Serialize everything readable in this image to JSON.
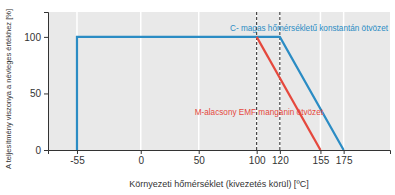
{
  "chart_data": {
    "type": "line",
    "x_label": "Környezeti hőmérséklet (kivezetés körül) [ºC]",
    "y_label": "A teljesítmény viszonya a névleges értékhez [%]",
    "series": [
      {
        "name": "C- magas hőmérsékletű konstantán ötvözet",
        "color": "#2b8cc4",
        "x": [
          -55,
          -55,
          120,
          175
        ],
        "values": [
          0,
          100,
          100,
          0
        ]
      },
      {
        "name": "M-alacsony EMF manganin ötvözet",
        "color": "#e5483d",
        "x": [
          100,
          155
        ],
        "values": [
          100,
          0
        ]
      }
    ],
    "xlim": [
      -80,
      215
    ],
    "ylim": [
      0,
      122
    ],
    "xticks": [
      -55,
      0,
      50,
      100,
      120,
      155,
      175
    ],
    "yticks": [
      0,
      50,
      100
    ],
    "grid": true,
    "vlines": [
      100,
      120
    ]
  }
}
